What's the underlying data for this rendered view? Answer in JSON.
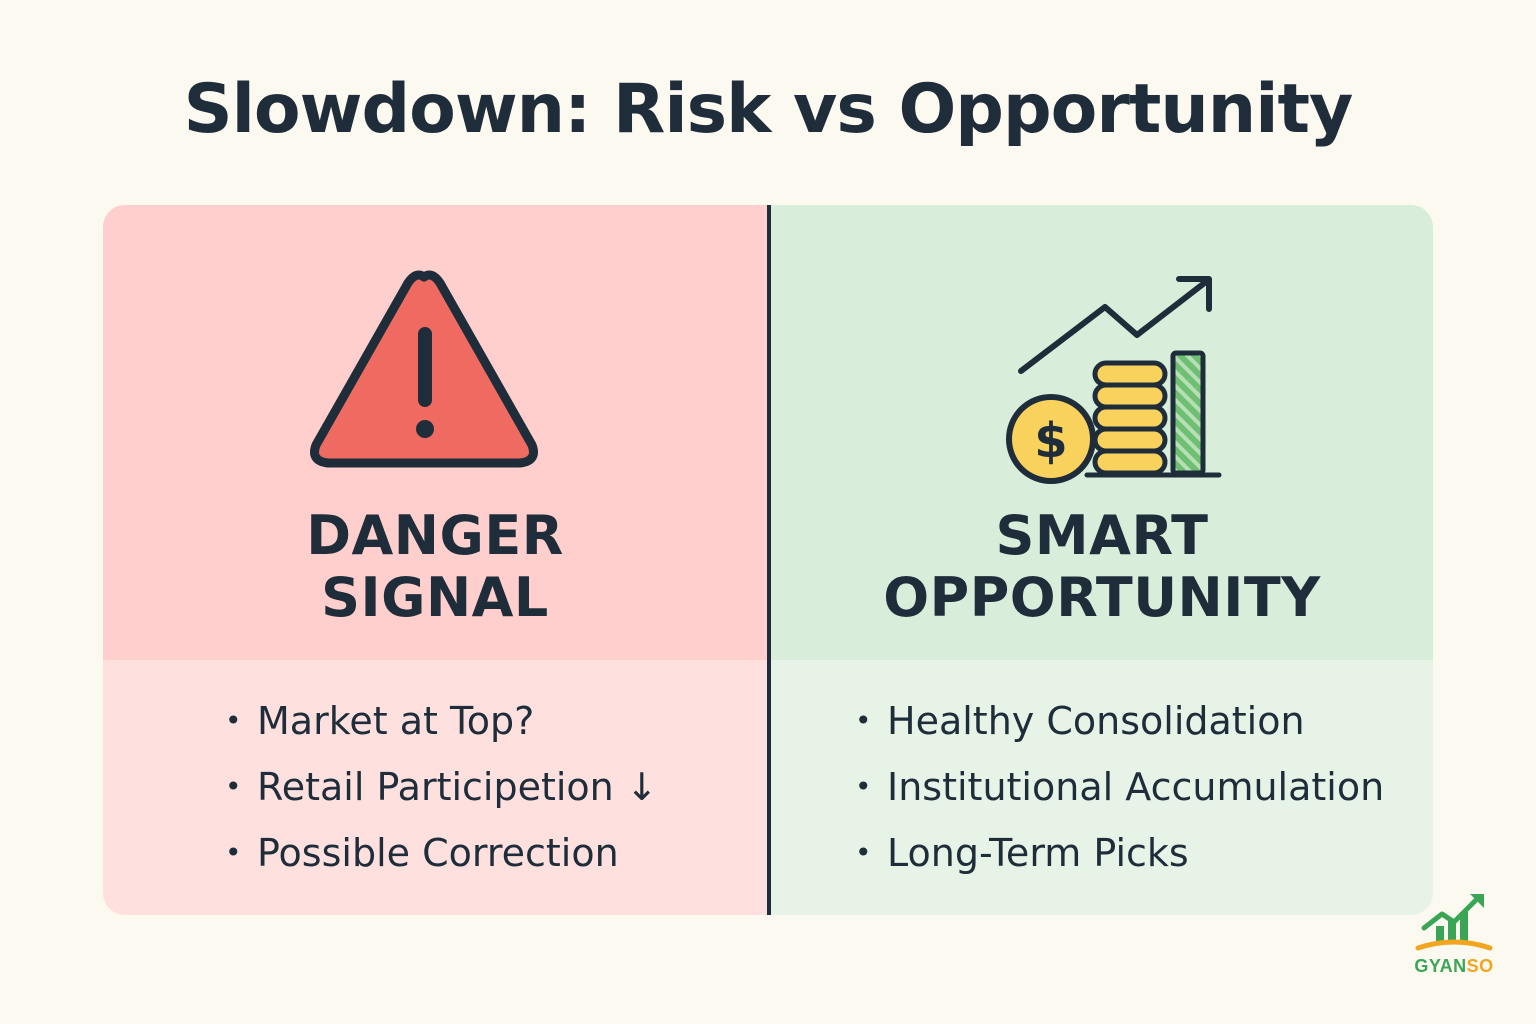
{
  "title": "Slowdown: Risk vs Opportunity",
  "left": {
    "icon": "warning-triangle-icon",
    "heading_line1": "DANGER",
    "heading_line2": "SIGNAL",
    "bullets": [
      "Market at Top?",
      "Retail Participetion ↓",
      "Possible Correction"
    ],
    "colors": {
      "top": "#fecfcd",
      "bottom": "#fee1df",
      "icon": "#ef6b61"
    }
  },
  "right": {
    "icon": "growth-chart-coins-icon",
    "heading_line1": "SMART",
    "heading_line2": "OPPORTUNITY",
    "bullets": [
      "Healthy Consolidation",
      "Institutional Accumulation",
      "Long-Term Picks"
    ],
    "colors": {
      "top": "#d9eeda",
      "bottom": "#e6f3e6",
      "coin": "#f8d25c",
      "bar": "#6fbf73"
    }
  },
  "bullet_symbol": "•",
  "brand": {
    "icon": "gyanso-logo-icon",
    "name_part1": "GYAN",
    "name_part2": "SO"
  }
}
